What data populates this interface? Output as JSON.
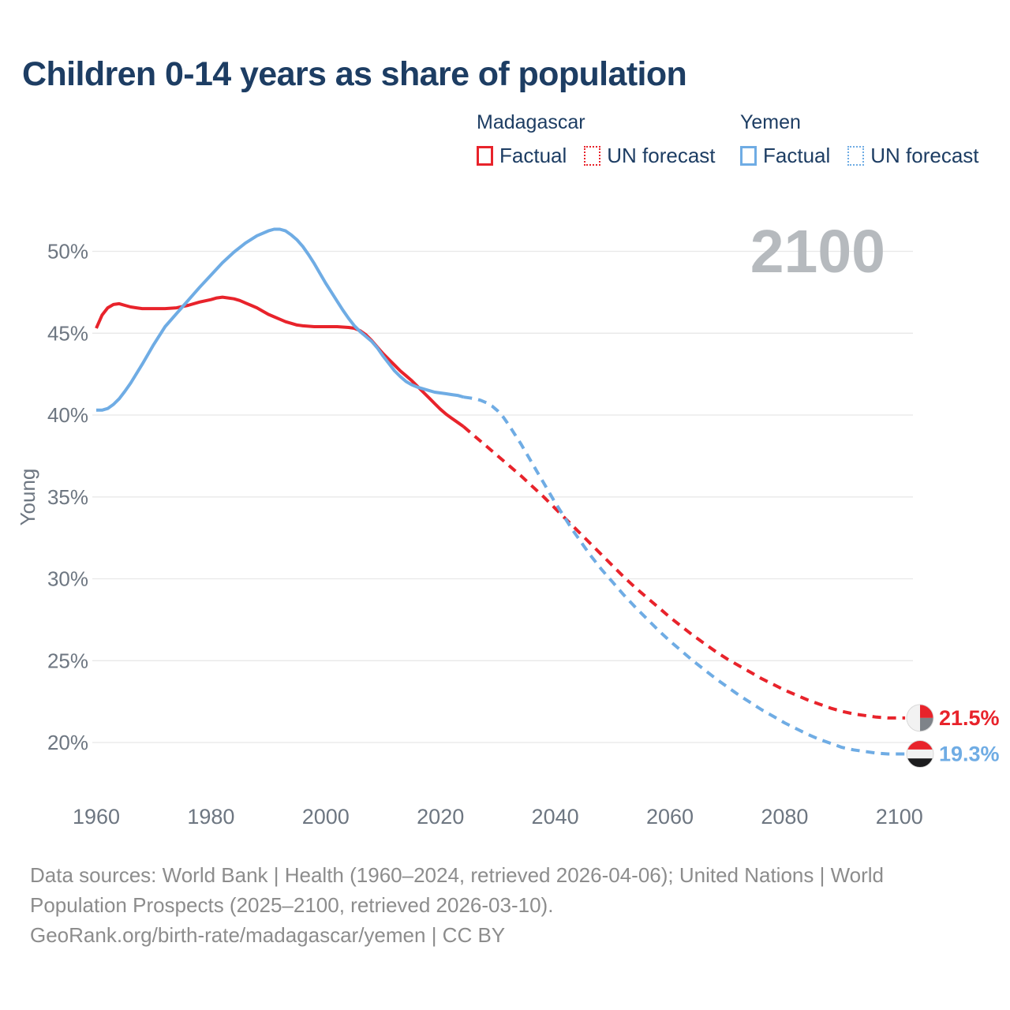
{
  "header": {
    "title": "Children 0-14 years as share of population"
  },
  "palette": {
    "navy": "#1D3D63",
    "red": "#E8232B",
    "blue": "#6FACE4",
    "grid": "#E8E8E8",
    "tick": "#6D7681",
    "watermark": "#B6BABE",
    "footer_gray": "#8C8C8C"
  },
  "legend": {
    "groups": [
      {
        "name": "Madagascar",
        "color": "#E8232B",
        "items": [
          {
            "label": "Factual",
            "style": "solid"
          },
          {
            "label": "UN forecast",
            "style": "dotted"
          }
        ]
      },
      {
        "name": "Yemen",
        "color": "#6FACE4",
        "items": [
          {
            "label": "Factual",
            "style": "solid"
          },
          {
            "label": "UN forecast",
            "style": "dotted"
          }
        ]
      }
    ]
  },
  "flags": {
    "madagascar": {
      "left": "#F2F2F2",
      "top_right": "#E8232B",
      "bottom_right": "#7E8389"
    },
    "yemen": {
      "top": "#E8232B",
      "middle": "#F2F2F2",
      "bottom": "#1C1C1E"
    }
  },
  "footer": {
    "lines": [
      "Data sources: World Bank | Health (1960–2024, retrieved 2026-04-06); United Nations | World",
      "Population Prospects (2025–2100, retrieved 2026-03-10).",
      "GeoRank.org/birth-rate/madagascar/yemen | CC BY"
    ]
  },
  "chart_data": {
    "type": "line",
    "title": "Children 0-14 years as share of population",
    "ylabel": "Young",
    "watermark": "2100",
    "grid": "horizontal",
    "legend_position": "top-right",
    "x_ticks": [
      1960,
      1980,
      2000,
      2020,
      2040,
      2060,
      2080,
      2100
    ],
    "y_ticks": [
      20,
      25,
      30,
      35,
      40,
      45,
      50
    ],
    "y_tick_suffix": "%",
    "xlim": [
      1959,
      2103
    ],
    "ylim": [
      17.5,
      53
    ],
    "series": [
      {
        "name": "Madagascar Factual",
        "country": "Madagascar",
        "kind": "factual",
        "color": "#E8232B",
        "dash": "solid",
        "points": [
          [
            1960,
            45.3
          ],
          [
            1961,
            46.1
          ],
          [
            1962,
            46.55
          ],
          [
            1963,
            46.75
          ],
          [
            1964,
            46.8
          ],
          [
            1965,
            46.7
          ],
          [
            1966,
            46.6
          ],
          [
            1967,
            46.55
          ],
          [
            1968,
            46.5
          ],
          [
            1970,
            46.5
          ],
          [
            1972,
            46.5
          ],
          [
            1974,
            46.55
          ],
          [
            1976,
            46.7
          ],
          [
            1978,
            46.9
          ],
          [
            1980,
            47.05
          ],
          [
            1981,
            47.15
          ],
          [
            1982,
            47.2
          ],
          [
            1983,
            47.15
          ],
          [
            1984,
            47.1
          ],
          [
            1985,
            47.0
          ],
          [
            1986,
            46.85
          ],
          [
            1987,
            46.7
          ],
          [
            1988,
            46.55
          ],
          [
            1989,
            46.35
          ],
          [
            1990,
            46.15
          ],
          [
            1991,
            46.0
          ],
          [
            1992,
            45.85
          ],
          [
            1993,
            45.7
          ],
          [
            1994,
            45.6
          ],
          [
            1995,
            45.5
          ],
          [
            1996,
            45.45
          ],
          [
            1998,
            45.4
          ],
          [
            2000,
            45.4
          ],
          [
            2002,
            45.4
          ],
          [
            2004,
            45.35
          ],
          [
            2005,
            45.3
          ],
          [
            2006,
            45.15
          ],
          [
            2007,
            44.9
          ],
          [
            2008,
            44.55
          ],
          [
            2009,
            44.15
          ],
          [
            2010,
            43.75
          ],
          [
            2011,
            43.4
          ],
          [
            2012,
            43.05
          ],
          [
            2013,
            42.7
          ],
          [
            2014,
            42.4
          ],
          [
            2015,
            42.1
          ],
          [
            2016,
            41.75
          ],
          [
            2017,
            41.4
          ],
          [
            2018,
            41.05
          ],
          [
            2019,
            40.7
          ],
          [
            2020,
            40.35
          ],
          [
            2021,
            40.05
          ],
          [
            2022,
            39.8
          ],
          [
            2023,
            39.55
          ],
          [
            2024,
            39.3
          ]
        ]
      },
      {
        "name": "Madagascar UN forecast",
        "country": "Madagascar",
        "kind": "forecast",
        "color": "#E8232B",
        "dash": "dashed",
        "points": [
          [
            2024,
            39.3
          ],
          [
            2026,
            38.7
          ],
          [
            2028,
            38.1
          ],
          [
            2030,
            37.5
          ],
          [
            2032,
            36.9
          ],
          [
            2034,
            36.3
          ],
          [
            2036,
            35.65
          ],
          [
            2038,
            35.0
          ],
          [
            2040,
            34.3
          ],
          [
            2042,
            33.6
          ],
          [
            2044,
            32.9
          ],
          [
            2046,
            32.2
          ],
          [
            2048,
            31.5
          ],
          [
            2050,
            30.8
          ],
          [
            2052,
            30.1
          ],
          [
            2054,
            29.45
          ],
          [
            2056,
            28.85
          ],
          [
            2058,
            28.25
          ],
          [
            2060,
            27.65
          ],
          [
            2062,
            27.1
          ],
          [
            2064,
            26.55
          ],
          [
            2066,
            26.05
          ],
          [
            2068,
            25.55
          ],
          [
            2070,
            25.1
          ],
          [
            2072,
            24.7
          ],
          [
            2074,
            24.3
          ],
          [
            2076,
            23.9
          ],
          [
            2078,
            23.55
          ],
          [
            2080,
            23.2
          ],
          [
            2082,
            22.9
          ],
          [
            2084,
            22.6
          ],
          [
            2086,
            22.35
          ],
          [
            2088,
            22.1
          ],
          [
            2090,
            21.9
          ],
          [
            2092,
            21.75
          ],
          [
            2094,
            21.65
          ],
          [
            2096,
            21.55
          ],
          [
            2098,
            21.5
          ],
          [
            2100,
            21.5
          ],
          [
            2101,
            21.5
          ]
        ]
      },
      {
        "name": "Yemen Factual",
        "country": "Yemen",
        "kind": "factual",
        "color": "#6FACE4",
        "dash": "solid",
        "points": [
          [
            1960,
            40.3
          ],
          [
            1961,
            40.3
          ],
          [
            1962,
            40.4
          ],
          [
            1963,
            40.65
          ],
          [
            1964,
            41.0
          ],
          [
            1965,
            41.45
          ],
          [
            1966,
            41.95
          ],
          [
            1968,
            43.1
          ],
          [
            1970,
            44.3
          ],
          [
            1972,
            45.4
          ],
          [
            1974,
            46.2
          ],
          [
            1975,
            46.6
          ],
          [
            1976,
            47.0
          ],
          [
            1978,
            47.8
          ],
          [
            1980,
            48.55
          ],
          [
            1982,
            49.3
          ],
          [
            1984,
            49.95
          ],
          [
            1986,
            50.5
          ],
          [
            1988,
            50.95
          ],
          [
            1990,
            51.25
          ],
          [
            1991,
            51.35
          ],
          [
            1992,
            51.35
          ],
          [
            1993,
            51.25
          ],
          [
            1994,
            51.0
          ],
          [
            1995,
            50.7
          ],
          [
            1996,
            50.3
          ],
          [
            1997,
            49.8
          ],
          [
            1998,
            49.25
          ],
          [
            1999,
            48.65
          ],
          [
            2000,
            48.05
          ],
          [
            2001,
            47.5
          ],
          [
            2002,
            46.95
          ],
          [
            2003,
            46.4
          ],
          [
            2004,
            45.9
          ],
          [
            2005,
            45.45
          ],
          [
            2006,
            45.1
          ],
          [
            2007,
            44.8
          ],
          [
            2008,
            44.5
          ],
          [
            2009,
            44.1
          ],
          [
            2010,
            43.6
          ],
          [
            2011,
            43.15
          ],
          [
            2012,
            42.7
          ],
          [
            2013,
            42.35
          ],
          [
            2014,
            42.05
          ],
          [
            2015,
            41.85
          ],
          [
            2016,
            41.7
          ],
          [
            2017,
            41.6
          ],
          [
            2018,
            41.5
          ],
          [
            2019,
            41.4
          ],
          [
            2020,
            41.35
          ],
          [
            2021,
            41.3
          ],
          [
            2022,
            41.25
          ],
          [
            2023,
            41.2
          ],
          [
            2024,
            41.1
          ]
        ]
      },
      {
        "name": "Yemen UN forecast",
        "country": "Yemen",
        "kind": "forecast",
        "color": "#6FACE4",
        "dash": "dashed",
        "points": [
          [
            2024,
            41.1
          ],
          [
            2025,
            41.05
          ],
          [
            2026,
            41.0
          ],
          [
            2027,
            40.9
          ],
          [
            2028,
            40.75
          ],
          [
            2029,
            40.55
          ],
          [
            2030,
            40.25
          ],
          [
            2031,
            39.85
          ],
          [
            2032,
            39.35
          ],
          [
            2033,
            38.8
          ],
          [
            2034,
            38.25
          ],
          [
            2035,
            37.65
          ],
          [
            2036,
            37.05
          ],
          [
            2037,
            36.45
          ],
          [
            2038,
            35.85
          ],
          [
            2039,
            35.25
          ],
          [
            2040,
            34.65
          ],
          [
            2041,
            34.1
          ],
          [
            2042,
            33.55
          ],
          [
            2043,
            33.0
          ],
          [
            2044,
            32.5
          ],
          [
            2045,
            32.0
          ],
          [
            2046,
            31.5
          ],
          [
            2047,
            31.05
          ],
          [
            2048,
            30.6
          ],
          [
            2049,
            30.2
          ],
          [
            2050,
            29.8
          ],
          [
            2052,
            29.0
          ],
          [
            2054,
            28.25
          ],
          [
            2056,
            27.55
          ],
          [
            2058,
            26.85
          ],
          [
            2060,
            26.2
          ],
          [
            2062,
            25.6
          ],
          [
            2064,
            25.0
          ],
          [
            2066,
            24.45
          ],
          [
            2068,
            23.9
          ],
          [
            2070,
            23.4
          ],
          [
            2072,
            22.9
          ],
          [
            2074,
            22.45
          ],
          [
            2076,
            22.0
          ],
          [
            2078,
            21.6
          ],
          [
            2080,
            21.2
          ],
          [
            2082,
            20.85
          ],
          [
            2084,
            20.5
          ],
          [
            2086,
            20.2
          ],
          [
            2088,
            19.95
          ],
          [
            2090,
            19.7
          ],
          [
            2092,
            19.55
          ],
          [
            2094,
            19.45
          ],
          [
            2096,
            19.35
          ],
          [
            2098,
            19.3
          ],
          [
            2100,
            19.3
          ],
          [
            2101,
            19.3
          ]
        ]
      }
    ],
    "end_annotations": [
      {
        "label": "21.5%",
        "value": 21.5,
        "year": 2100,
        "country": "Madagascar",
        "color": "#E8232B",
        "flag": "madagascar"
      },
      {
        "label": "19.3%",
        "value": 19.3,
        "year": 2100,
        "country": "Yemen",
        "color": "#6FACE4",
        "flag": "yemen"
      }
    ]
  }
}
